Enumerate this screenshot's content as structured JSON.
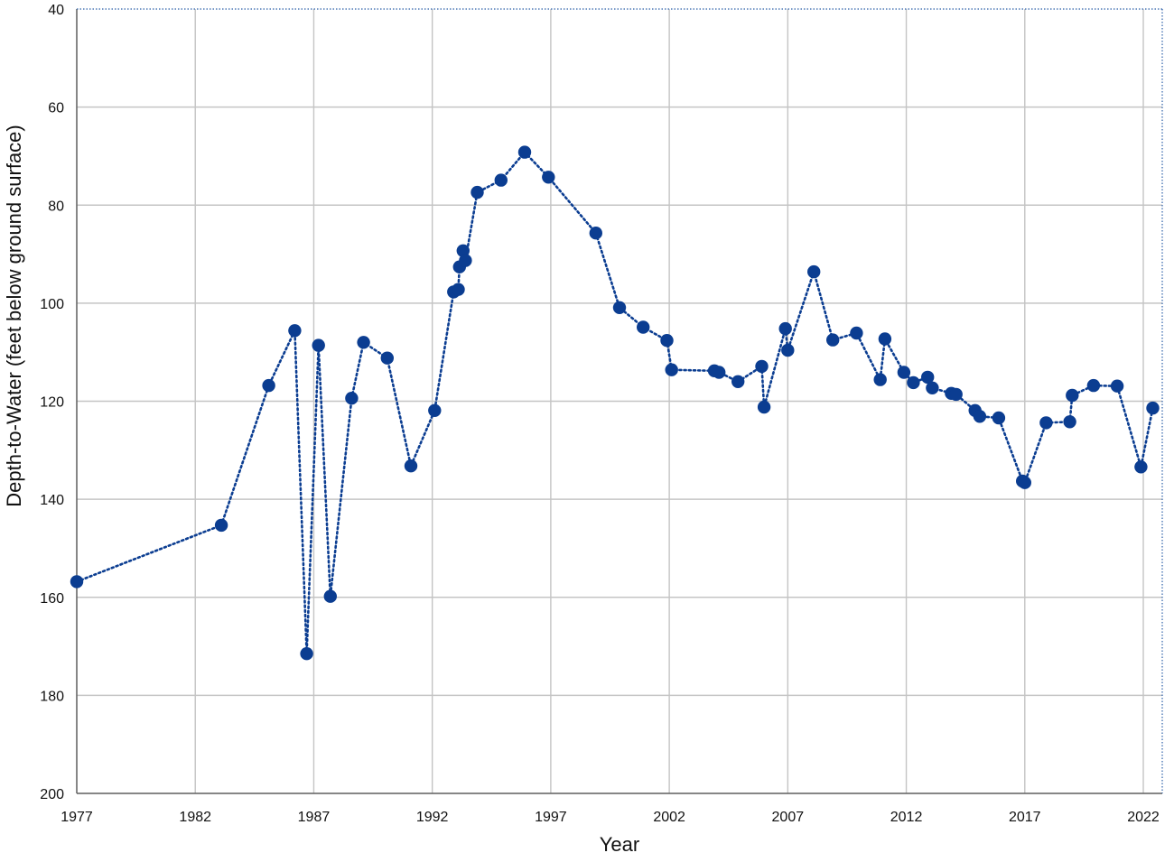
{
  "chart_data": {
    "type": "scatter",
    "title": "",
    "xlabel": "Year",
    "ylabel": "Depth-to-Water (feet  below ground surface)",
    "xlim": [
      1977,
      2022.8
    ],
    "ylim": [
      40,
      200
    ],
    "y_inverted": true,
    "grid": true,
    "legend": "none",
    "x_ticks": [
      1977,
      1982,
      1987,
      1992,
      1997,
      2002,
      2007,
      2012,
      2017,
      2022
    ],
    "y_ticks": [
      40,
      60,
      80,
      100,
      120,
      140,
      160,
      180,
      200
    ],
    "colors": {
      "series": "#0b3d91",
      "grid": "#c4c4c4",
      "axis": "#5f5f5f"
    },
    "series": [
      {
        "line_style": "dotted",
        "marker": "circle",
        "points": [
          [
            1977.0,
            156.8
          ],
          [
            1983.1,
            145.3
          ],
          [
            1985.1,
            116.8
          ],
          [
            1986.2,
            105.6
          ],
          [
            1986.7,
            171.5
          ],
          [
            1987.2,
            108.6
          ],
          [
            1987.7,
            159.8
          ],
          [
            1988.6,
            119.4
          ],
          [
            1989.1,
            108.0
          ],
          [
            1990.1,
            111.2
          ],
          [
            1991.1,
            133.2
          ],
          [
            1992.1,
            121.9
          ],
          [
            1992.9,
            97.7
          ],
          [
            1993.1,
            97.2
          ],
          [
            1993.15,
            92.6
          ],
          [
            1993.3,
            89.3
          ],
          [
            1993.4,
            91.3
          ],
          [
            1993.9,
            77.4
          ],
          [
            1994.9,
            74.9
          ],
          [
            1995.9,
            69.2
          ],
          [
            1996.9,
            74.3
          ],
          [
            1998.9,
            85.7
          ],
          [
            1999.9,
            100.9
          ],
          [
            2000.9,
            104.9
          ],
          [
            2001.9,
            107.6
          ],
          [
            2002.1,
            113.6
          ],
          [
            2003.9,
            113.8
          ],
          [
            2004.1,
            114.1
          ],
          [
            2004.9,
            116.0
          ],
          [
            2005.9,
            112.9
          ],
          [
            2006.0,
            121.2
          ],
          [
            2006.9,
            105.2
          ],
          [
            2007.0,
            109.6
          ],
          [
            2008.1,
            93.6
          ],
          [
            2008.9,
            107.5
          ],
          [
            2009.9,
            106.1
          ],
          [
            2010.9,
            115.6
          ],
          [
            2011.1,
            107.3
          ],
          [
            2011.9,
            114.1
          ],
          [
            2012.3,
            116.2
          ],
          [
            2012.9,
            115.1
          ],
          [
            2013.1,
            117.3
          ],
          [
            2013.9,
            118.4
          ],
          [
            2014.1,
            118.6
          ],
          [
            2014.9,
            121.9
          ],
          [
            2015.1,
            123.1
          ],
          [
            2015.9,
            123.4
          ],
          [
            2016.9,
            136.3
          ],
          [
            2017.0,
            136.6
          ],
          [
            2017.9,
            124.4
          ],
          [
            2018.9,
            124.2
          ],
          [
            2019.0,
            118.8
          ],
          [
            2019.9,
            116.8
          ],
          [
            2020.9,
            116.9
          ],
          [
            2021.9,
            133.4
          ],
          [
            2022.4,
            121.4
          ]
        ]
      }
    ]
  }
}
